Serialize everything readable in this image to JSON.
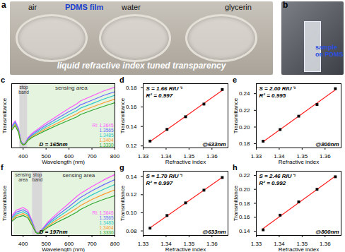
{
  "photos": [
    {
      "panel": "a",
      "texts": [
        "air",
        "PDMS film",
        "water",
        "glycerin",
        "liquid refractive index tuned transparency"
      ]
    },
    {
      "panel": "b",
      "texts": [
        "sample on PDMS"
      ]
    }
  ],
  "chart_data": [
    {
      "panel": "c",
      "type": "line",
      "x_label": "Wavelength (nm)",
      "y_label": "Transmittance",
      "x": [
        350,
        365,
        380,
        390,
        400,
        410,
        420,
        440,
        470,
        500,
        550,
        600,
        633,
        650,
        700,
        750,
        800
      ],
      "series": [
        {
          "name": "RI: 1.3645",
          "color": "#ff55ff",
          "values": [
            0.09,
            0.11,
            0.08,
            0.03,
            0.015,
            0.02,
            0.04,
            0.06,
            0.08,
            0.1,
            0.13,
            0.16,
            0.178,
            0.19,
            0.21,
            0.23,
            0.246
          ]
        },
        {
          "name": "1.3565",
          "color": "#6b6bff",
          "values": [
            0.085,
            0.105,
            0.075,
            0.028,
            0.014,
            0.019,
            0.037,
            0.055,
            0.074,
            0.092,
            0.12,
            0.147,
            0.163,
            0.174,
            0.193,
            0.212,
            0.227
          ]
        },
        {
          "name": "1.3485",
          "color": "#30c8c8",
          "values": [
            0.08,
            0.1,
            0.07,
            0.026,
            0.013,
            0.018,
            0.034,
            0.051,
            0.068,
            0.085,
            0.11,
            0.135,
            0.15,
            0.161,
            0.179,
            0.197,
            0.213
          ]
        },
        {
          "name": "1.3404",
          "color": "#ff9a30",
          "values": [
            0.075,
            0.095,
            0.066,
            0.024,
            0.012,
            0.017,
            0.031,
            0.047,
            0.062,
            0.078,
            0.1,
            0.123,
            0.137,
            0.147,
            0.165,
            0.182,
            0.197
          ]
        },
        {
          "name": "1.3330",
          "color": "#2fa82f",
          "values": [
            0.07,
            0.09,
            0.062,
            0.022,
            0.011,
            0.016,
            0.029,
            0.043,
            0.057,
            0.071,
            0.092,
            0.112,
            0.125,
            0.135,
            0.152,
            0.168,
            0.183
          ]
        }
      ],
      "xlim": [
        350,
        800
      ],
      "xticks": [
        400,
        500,
        600,
        700,
        800
      ],
      "ylim": [
        0,
        0.26
      ],
      "tick_labels": "x",
      "legend": "bottom-right",
      "regions": [
        {
          "label": "stop band",
          "range": [
            385,
            420
          ]
        },
        {
          "label": "sensing area",
          "range": [
            420,
            800
          ]
        }
      ],
      "annotations": [
        "D = 165nm"
      ]
    },
    {
      "panel": "d",
      "type": "scatter",
      "x_label": "Refractive index",
      "y_label": "Transmittance",
      "x": [
        1.333,
        1.3404,
        1.3485,
        1.3565,
        1.3645
      ],
      "values": [
        0.125,
        0.137,
        0.15,
        0.163,
        0.178
      ],
      "color": "#000000",
      "marker": "square",
      "xlim": [
        1.33,
        1.367
      ],
      "xticks": [
        1.33,
        1.34,
        1.35,
        1.36
      ],
      "ylim": [
        0.118,
        0.184
      ],
      "yticks": [
        0.12,
        0.14,
        0.16,
        0.18
      ],
      "annotations": [
        "S = 1.66 RIU⁻¹",
        "R² = 0.997",
        "@633nm"
      ]
    },
    {
      "panel": "e",
      "type": "scatter",
      "x_label": "Refractive index",
      "y_label": "Transmittance",
      "x": [
        1.333,
        1.3404,
        1.3485,
        1.3565,
        1.3645
      ],
      "values": [
        0.183,
        0.197,
        0.213,
        0.227,
        0.246
      ],
      "color": "#000000",
      "marker": "square",
      "xlim": [
        1.33,
        1.367
      ],
      "xticks": [
        1.33,
        1.34,
        1.35,
        1.36
      ],
      "ylim": [
        0.175,
        0.252
      ],
      "yticks": [
        0.18,
        {
          "value": 0.2,
          "label": "0.20"
        },
        0.22,
        0.24
      ],
      "annotations": [
        "S = 2.00 RIU⁻¹",
        "R² = 0.995",
        "@800nm"
      ]
    },
    {
      "panel": "f",
      "type": "line",
      "x_label": "Wavelength (nm)",
      "y_label": "Transmittance",
      "x": [
        350,
        370,
        400,
        420,
        440,
        455,
        465,
        475,
        490,
        510,
        550,
        600,
        633,
        650,
        700,
        750,
        800
      ],
      "series": [
        {
          "name": "RI: 1.3645",
          "color": "#ff55ff",
          "values": [
            0.07,
            0.09,
            0.1,
            0.09,
            0.05,
            0.015,
            0.01,
            0.015,
            0.03,
            0.05,
            0.08,
            0.115,
            0.139,
            0.15,
            0.175,
            0.198,
            0.218
          ]
        },
        {
          "name": "1.3565",
          "color": "#6b6bff",
          "values": [
            0.065,
            0.083,
            0.092,
            0.083,
            0.046,
            0.014,
            0.009,
            0.014,
            0.027,
            0.045,
            0.072,
            0.103,
            0.125,
            0.136,
            0.16,
            0.181,
            0.2
          ]
        },
        {
          "name": "1.3485",
          "color": "#30c8c8",
          "values": [
            0.06,
            0.076,
            0.085,
            0.076,
            0.042,
            0.013,
            0.008,
            0.013,
            0.024,
            0.04,
            0.064,
            0.092,
            0.111,
            0.122,
            0.145,
            0.165,
            0.182
          ]
        },
        {
          "name": "1.3404",
          "color": "#ff9a30",
          "values": [
            0.055,
            0.07,
            0.078,
            0.07,
            0.038,
            0.012,
            0.007,
            0.012,
            0.021,
            0.035,
            0.056,
            0.08,
            0.097,
            0.107,
            0.129,
            0.147,
            0.163
          ]
        },
        {
          "name": "1.3330",
          "color": "#2fa82f",
          "values": [
            0.05,
            0.064,
            0.071,
            0.064,
            0.034,
            0.011,
            0.006,
            0.011,
            0.018,
            0.03,
            0.048,
            0.068,
            0.083,
            0.093,
            0.113,
            0.129,
            0.142
          ]
        }
      ],
      "xlim": [
        350,
        800
      ],
      "xticks": [
        400,
        500,
        600,
        700,
        800
      ],
      "ylim": [
        0,
        0.23
      ],
      "tick_labels": "x",
      "legend": "bottom-right",
      "regions": [
        {
          "label": "sensing area",
          "range": [
            360,
            440
          ]
        },
        {
          "label": "stop band",
          "range": [
            440,
            485
          ]
        },
        {
          "label": "sensing area",
          "range": [
            485,
            800
          ]
        }
      ],
      "annotations": [
        "D = 197nm"
      ]
    },
    {
      "panel": "g",
      "type": "scatter",
      "x_label": "Refractive index",
      "y_label": "Transmittance",
      "x": [
        1.333,
        1.3404,
        1.3485,
        1.3565,
        1.3645
      ],
      "values": [
        0.083,
        0.097,
        0.111,
        0.125,
        0.139
      ],
      "color": "#000000",
      "marker": "square",
      "xlim": [
        1.33,
        1.367
      ],
      "xticks": [
        1.33,
        1.34,
        1.35,
        1.36
      ],
      "ylim": [
        0.075,
        0.146
      ],
      "yticks": [
        0.08,
        {
          "value": 0.1,
          "label": "0.10"
        },
        0.12,
        0.14
      ],
      "annotations": [
        "S = 1.70 RIU⁻¹",
        "R² = 0.997",
        "@633nm"
      ]
    },
    {
      "panel": "h",
      "type": "scatter",
      "x_label": "Refractive index",
      "y_label": "Transmittance",
      "x": [
        1.333,
        1.3404,
        1.3485,
        1.3565,
        1.3645
      ],
      "values": [
        0.142,
        0.163,
        0.182,
        0.2,
        0.218
      ],
      "color": "#000000",
      "marker": "square",
      "xlim": [
        1.33,
        1.367
      ],
      "xticks": [
        1.33,
        1.34,
        1.35,
        1.36
      ],
      "ylim": [
        0.134,
        0.226
      ],
      "yticks": [
        0.14,
        0.16,
        0.18,
        {
          "value": 0.2,
          "label": "0.20"
        },
        0.22
      ],
      "annotations": [
        "S = 2.46 RIU⁻¹",
        "R² = 0.992",
        "@800nm"
      ]
    }
  ]
}
